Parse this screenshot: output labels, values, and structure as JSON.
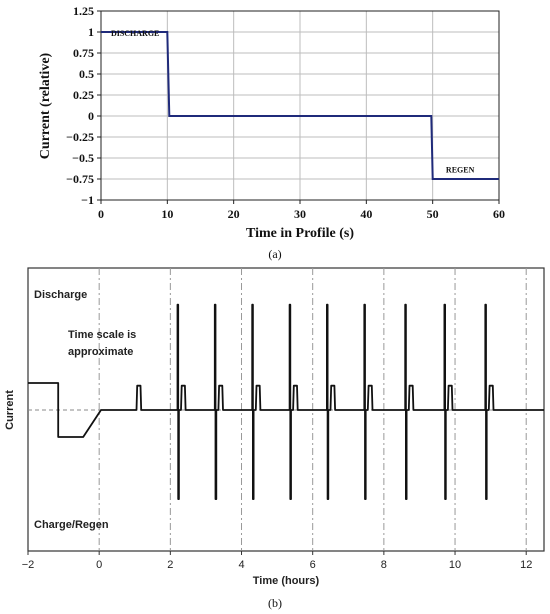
{
  "chart_data": [
    {
      "type": "line",
      "panel_label": "(a)",
      "title": "",
      "xlabel": "Time in Profile (s)",
      "ylabel": "Current (relative)",
      "xlim": [
        0,
        60
      ],
      "ylim": [
        -1,
        1.25
      ],
      "x_ticks": [
        0,
        10,
        20,
        30,
        40,
        50,
        60
      ],
      "x_tick_labels": [
        "0",
        "10",
        "20",
        "30",
        "40",
        "50",
        "60"
      ],
      "y_ticks": [
        1.25,
        1,
        0.75,
        0.5,
        0.25,
        0,
        -0.25,
        -0.5,
        -0.75,
        -1
      ],
      "y_tick_labels": [
        "1.25",
        "1",
        "0.75",
        "0.5",
        "0.25",
        "0",
        "−0.25",
        "−0.5",
        "−0.75",
        "−1"
      ],
      "grid": true,
      "line_color": "#1f2a7a",
      "series": [
        {
          "x": [
            0,
            10,
            10.3,
            49.8,
            50,
            60
          ],
          "y": [
            1,
            1,
            0,
            0,
            -0.75,
            -0.75
          ]
        }
      ],
      "annotations": [
        {
          "text": "DISCHARGE",
          "x": 1.5,
          "y": 0.95
        },
        {
          "text": "REGEN",
          "x": 52,
          "y": -0.67
        }
      ]
    },
    {
      "type": "line",
      "panel_label": "(b)",
      "title": "",
      "xlabel": "Time (hours)",
      "ylabel": "Current",
      "xlim": [
        -2,
        12.5
      ],
      "x_ticks": [
        -2,
        0,
        2,
        4,
        6,
        8,
        10,
        12
      ],
      "x_tick_labels": [
        "−2",
        "0",
        "2",
        "4",
        "6",
        "8",
        "10",
        "12"
      ],
      "grid": "dash-dot vertical lines at even hours",
      "line_color": "#111111",
      "annotations": [
        {
          "text": "Discharge",
          "position": "top-left"
        },
        {
          "text": "Time scale is",
          "position": "upper-left"
        },
        {
          "text": "approximate",
          "position": "upper-left"
        },
        {
          "text": "Charge/Regen",
          "position": "bottom-left"
        }
      ],
      "profile": {
        "pre_rest_level": 1,
        "charge_level": -1,
        "spike_high": 3.9,
        "spike_low": -3.3,
        "pulse_level": 0.9,
        "pre_rest": [
          -2,
          -1.15
        ],
        "charge_segment": [
          -1.15,
          -0.45
        ],
        "ramp_to_zero": [
          -0.45,
          0.05
        ],
        "pulse_times": [
          1.05,
          2.3,
          3.35,
          4.4,
          5.45,
          6.5,
          7.55,
          8.7,
          9.8,
          10.95
        ],
        "spike_times": [
          2.2,
          3.25,
          4.3,
          5.35,
          6.4,
          7.45,
          8.6,
          9.7,
          10.85
        ]
      }
    }
  ]
}
